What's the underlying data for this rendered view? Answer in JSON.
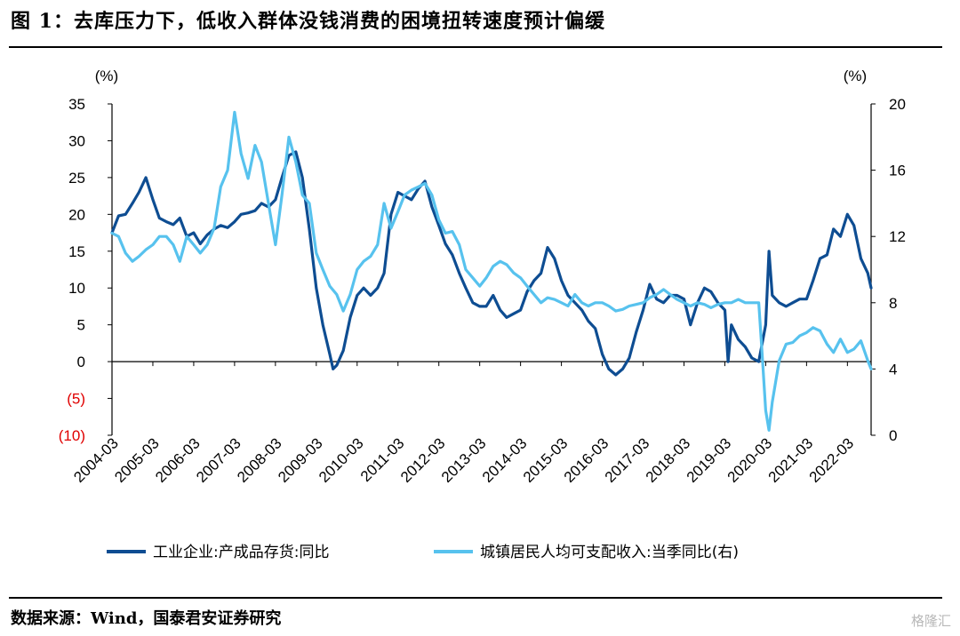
{
  "header": {
    "title": "图 1：去库压力下，低收入群体没钱消费的困境扭转速度预计偏缓"
  },
  "footer": {
    "source": "数据来源：Wind，国泰君安证券研究",
    "watermark": "格隆汇"
  },
  "chart_data": {
    "type": "line",
    "left_axis": {
      "unit": "(%)",
      "ylim": [
        -10,
        35
      ],
      "ticks": [
        35,
        30,
        25,
        20,
        15,
        10,
        5,
        0,
        -5,
        -10
      ],
      "tick_labels": [
        "35",
        "30",
        "25",
        "20",
        "15",
        "10",
        "5",
        "0",
        "(5)",
        "(10)"
      ]
    },
    "right_axis": {
      "unit": "(%)",
      "ylim": [
        0,
        20
      ],
      "ticks": [
        20,
        16,
        12,
        8,
        4,
        0
      ],
      "tick_labels": [
        "20",
        "16",
        "12",
        "8",
        "4",
        "0"
      ]
    },
    "x_range": [
      2004.17,
      2022.75
    ],
    "x_tick_labels": [
      "2004-03",
      "2005-03",
      "2006-03",
      "2007-03",
      "2008-03",
      "2009-03",
      "2010-03",
      "2011-03",
      "2012-03",
      "2013-03",
      "2014-03",
      "2015-03",
      "2016-03",
      "2017-03",
      "2018-03",
      "2019-03",
      "2020-03",
      "2021-03",
      "2022-03"
    ],
    "colors": {
      "series1": "#0e4d92",
      "series2": "#57c2ee",
      "negative_tick": "#e00000"
    },
    "legend": {
      "placement": "bottom"
    },
    "series": [
      {
        "name": "工业企业:产成品存货:同比",
        "axis": "left",
        "points": [
          [
            2004.17,
            17.5
          ],
          [
            2004.33,
            19.8
          ],
          [
            2004.5,
            20
          ],
          [
            2004.67,
            21.5
          ],
          [
            2004.83,
            23
          ],
          [
            2005.0,
            25
          ],
          [
            2005.17,
            22
          ],
          [
            2005.33,
            19.5
          ],
          [
            2005.5,
            19
          ],
          [
            2005.67,
            18.6
          ],
          [
            2005.83,
            19.5
          ],
          [
            2006.0,
            17
          ],
          [
            2006.17,
            17.5
          ],
          [
            2006.33,
            16
          ],
          [
            2006.5,
            17.2
          ],
          [
            2006.67,
            18
          ],
          [
            2006.83,
            18.5
          ],
          [
            2007.0,
            18.2
          ],
          [
            2007.17,
            19
          ],
          [
            2007.33,
            20
          ],
          [
            2007.5,
            20.2
          ],
          [
            2007.67,
            20.5
          ],
          [
            2007.83,
            21.5
          ],
          [
            2008.0,
            21
          ],
          [
            2008.17,
            22
          ],
          [
            2008.33,
            25
          ],
          [
            2008.5,
            28
          ],
          [
            2008.67,
            28.5
          ],
          [
            2008.83,
            25
          ],
          [
            2009.0,
            18
          ],
          [
            2009.17,
            10
          ],
          [
            2009.33,
            5
          ],
          [
            2009.5,
            1
          ],
          [
            2009.58,
            -1
          ],
          [
            2009.67,
            -0.5
          ],
          [
            2009.83,
            1.5
          ],
          [
            2010.0,
            6
          ],
          [
            2010.17,
            9
          ],
          [
            2010.33,
            10
          ],
          [
            2010.5,
            9
          ],
          [
            2010.67,
            10
          ],
          [
            2010.83,
            12
          ],
          [
            2011.0,
            20
          ],
          [
            2011.17,
            23
          ],
          [
            2011.33,
            22.5
          ],
          [
            2011.5,
            22
          ],
          [
            2011.67,
            23.5
          ],
          [
            2011.83,
            24.5
          ],
          [
            2012.0,
            21
          ],
          [
            2012.17,
            18.5
          ],
          [
            2012.33,
            16
          ],
          [
            2012.5,
            14.5
          ],
          [
            2012.67,
            12
          ],
          [
            2012.83,
            10
          ],
          [
            2013.0,
            8
          ],
          [
            2013.17,
            7.5
          ],
          [
            2013.33,
            7.5
          ],
          [
            2013.5,
            9
          ],
          [
            2013.67,
            7
          ],
          [
            2013.83,
            6
          ],
          [
            2014.0,
            6.5
          ],
          [
            2014.17,
            7
          ],
          [
            2014.33,
            9.5
          ],
          [
            2014.5,
            11
          ],
          [
            2014.67,
            12
          ],
          [
            2014.83,
            15.5
          ],
          [
            2015.0,
            14
          ],
          [
            2015.17,
            11
          ],
          [
            2015.33,
            9
          ],
          [
            2015.5,
            8
          ],
          [
            2015.67,
            7
          ],
          [
            2015.83,
            5.5
          ],
          [
            2016.0,
            4.5
          ],
          [
            2016.17,
            1
          ],
          [
            2016.33,
            -1
          ],
          [
            2016.5,
            -1.8
          ],
          [
            2016.67,
            -1
          ],
          [
            2016.83,
            0.5
          ],
          [
            2017.0,
            4
          ],
          [
            2017.17,
            7
          ],
          [
            2017.33,
            10.5
          ],
          [
            2017.5,
            8.5
          ],
          [
            2017.67,
            8
          ],
          [
            2017.83,
            9
          ],
          [
            2018.0,
            9
          ],
          [
            2018.17,
            8.5
          ],
          [
            2018.33,
            5
          ],
          [
            2018.5,
            8
          ],
          [
            2018.67,
            10
          ],
          [
            2018.83,
            9.5
          ],
          [
            2019.0,
            8
          ],
          [
            2019.17,
            7
          ],
          [
            2019.25,
            0
          ],
          [
            2019.33,
            5
          ],
          [
            2019.5,
            3
          ],
          [
            2019.67,
            2
          ],
          [
            2019.83,
            0.5
          ],
          [
            2020.0,
            0
          ],
          [
            2020.17,
            5
          ],
          [
            2020.25,
            15
          ],
          [
            2020.33,
            9
          ],
          [
            2020.5,
            8
          ],
          [
            2020.67,
            7.5
          ],
          [
            2020.83,
            8
          ],
          [
            2021.0,
            8.5
          ],
          [
            2021.17,
            8.5
          ],
          [
            2021.33,
            11
          ],
          [
            2021.5,
            14
          ],
          [
            2021.67,
            14.5
          ],
          [
            2021.83,
            18
          ],
          [
            2022.0,
            17
          ],
          [
            2022.17,
            20
          ],
          [
            2022.33,
            18.5
          ],
          [
            2022.5,
            14
          ],
          [
            2022.67,
            12
          ],
          [
            2022.75,
            10
          ]
        ]
      },
      {
        "name": "城镇居民人均可支配收入:当季同比(右)",
        "axis": "right",
        "points": [
          [
            2004.17,
            12.2
          ],
          [
            2004.33,
            12
          ],
          [
            2004.5,
            11
          ],
          [
            2004.67,
            10.5
          ],
          [
            2004.83,
            10.8
          ],
          [
            2005.0,
            11.2
          ],
          [
            2005.17,
            11.5
          ],
          [
            2005.33,
            12
          ],
          [
            2005.5,
            12
          ],
          [
            2005.67,
            11.5
          ],
          [
            2005.83,
            10.5
          ],
          [
            2006.0,
            12
          ],
          [
            2006.17,
            11.5
          ],
          [
            2006.33,
            11
          ],
          [
            2006.5,
            11.5
          ],
          [
            2006.67,
            12.5
          ],
          [
            2006.83,
            15
          ],
          [
            2007.0,
            16
          ],
          [
            2007.17,
            19.5
          ],
          [
            2007.33,
            17
          ],
          [
            2007.5,
            15.5
          ],
          [
            2007.67,
            17.5
          ],
          [
            2007.83,
            16.5
          ],
          [
            2008.0,
            14
          ],
          [
            2008.17,
            11.5
          ],
          [
            2008.33,
            14.5
          ],
          [
            2008.5,
            18
          ],
          [
            2008.67,
            16.5
          ],
          [
            2008.83,
            14.5
          ],
          [
            2009.0,
            14
          ],
          [
            2009.17,
            11
          ],
          [
            2009.33,
            10
          ],
          [
            2009.5,
            9
          ],
          [
            2009.67,
            8.5
          ],
          [
            2009.83,
            7.5
          ],
          [
            2010.0,
            8.5
          ],
          [
            2010.17,
            10
          ],
          [
            2010.33,
            10.5
          ],
          [
            2010.5,
            10.8
          ],
          [
            2010.67,
            11.5
          ],
          [
            2010.83,
            14
          ],
          [
            2011.0,
            12.5
          ],
          [
            2011.17,
            13.5
          ],
          [
            2011.33,
            14.5
          ],
          [
            2011.5,
            14.8
          ],
          [
            2011.67,
            15
          ],
          [
            2011.83,
            15.2
          ],
          [
            2012.0,
            14.5
          ],
          [
            2012.17,
            13
          ],
          [
            2012.33,
            12.2
          ],
          [
            2012.5,
            12.3
          ],
          [
            2012.67,
            11.5
          ],
          [
            2012.83,
            10
          ],
          [
            2013.0,
            9.5
          ],
          [
            2013.17,
            9
          ],
          [
            2013.33,
            9.5
          ],
          [
            2013.5,
            10.2
          ],
          [
            2013.67,
            10.5
          ],
          [
            2013.83,
            10.3
          ],
          [
            2014.0,
            9.8
          ],
          [
            2014.17,
            9.5
          ],
          [
            2014.33,
            9
          ],
          [
            2014.5,
            8.5
          ],
          [
            2014.67,
            8
          ],
          [
            2014.83,
            8.3
          ],
          [
            2015.0,
            8.2
          ],
          [
            2015.17,
            8
          ],
          [
            2015.33,
            7.8
          ],
          [
            2015.5,
            8.5
          ],
          [
            2015.67,
            8
          ],
          [
            2015.83,
            7.8
          ],
          [
            2016.0,
            8
          ],
          [
            2016.17,
            8
          ],
          [
            2016.33,
            7.8
          ],
          [
            2016.5,
            7.5
          ],
          [
            2016.67,
            7.6
          ],
          [
            2016.83,
            7.8
          ],
          [
            2017.0,
            7.9
          ],
          [
            2017.17,
            8
          ],
          [
            2017.33,
            8.3
          ],
          [
            2017.5,
            8.5
          ],
          [
            2017.67,
            8.8
          ],
          [
            2017.83,
            8.5
          ],
          [
            2018.0,
            8.2
          ],
          [
            2018.17,
            8
          ],
          [
            2018.33,
            7.8
          ],
          [
            2018.5,
            8
          ],
          [
            2018.67,
            7.9
          ],
          [
            2018.83,
            7.7
          ],
          [
            2019.0,
            7.9
          ],
          [
            2019.17,
            8
          ],
          [
            2019.33,
            8
          ],
          [
            2019.5,
            8.2
          ],
          [
            2019.67,
            8
          ],
          [
            2019.83,
            8
          ],
          [
            2020.0,
            8
          ],
          [
            2020.08,
            5
          ],
          [
            2020.17,
            1.5
          ],
          [
            2020.25,
            0.3
          ],
          [
            2020.33,
            2
          ],
          [
            2020.5,
            4.5
          ],
          [
            2020.67,
            5.5
          ],
          [
            2020.83,
            5.6
          ],
          [
            2021.0,
            6
          ],
          [
            2021.17,
            6.2
          ],
          [
            2021.33,
            6.5
          ],
          [
            2021.5,
            6.3
          ],
          [
            2021.67,
            5.5
          ],
          [
            2021.83,
            5
          ],
          [
            2022.0,
            5.8
          ],
          [
            2022.17,
            5
          ],
          [
            2022.33,
            5.2
          ],
          [
            2022.5,
            5.7
          ],
          [
            2022.67,
            4.5
          ],
          [
            2022.75,
            4
          ]
        ]
      }
    ]
  }
}
